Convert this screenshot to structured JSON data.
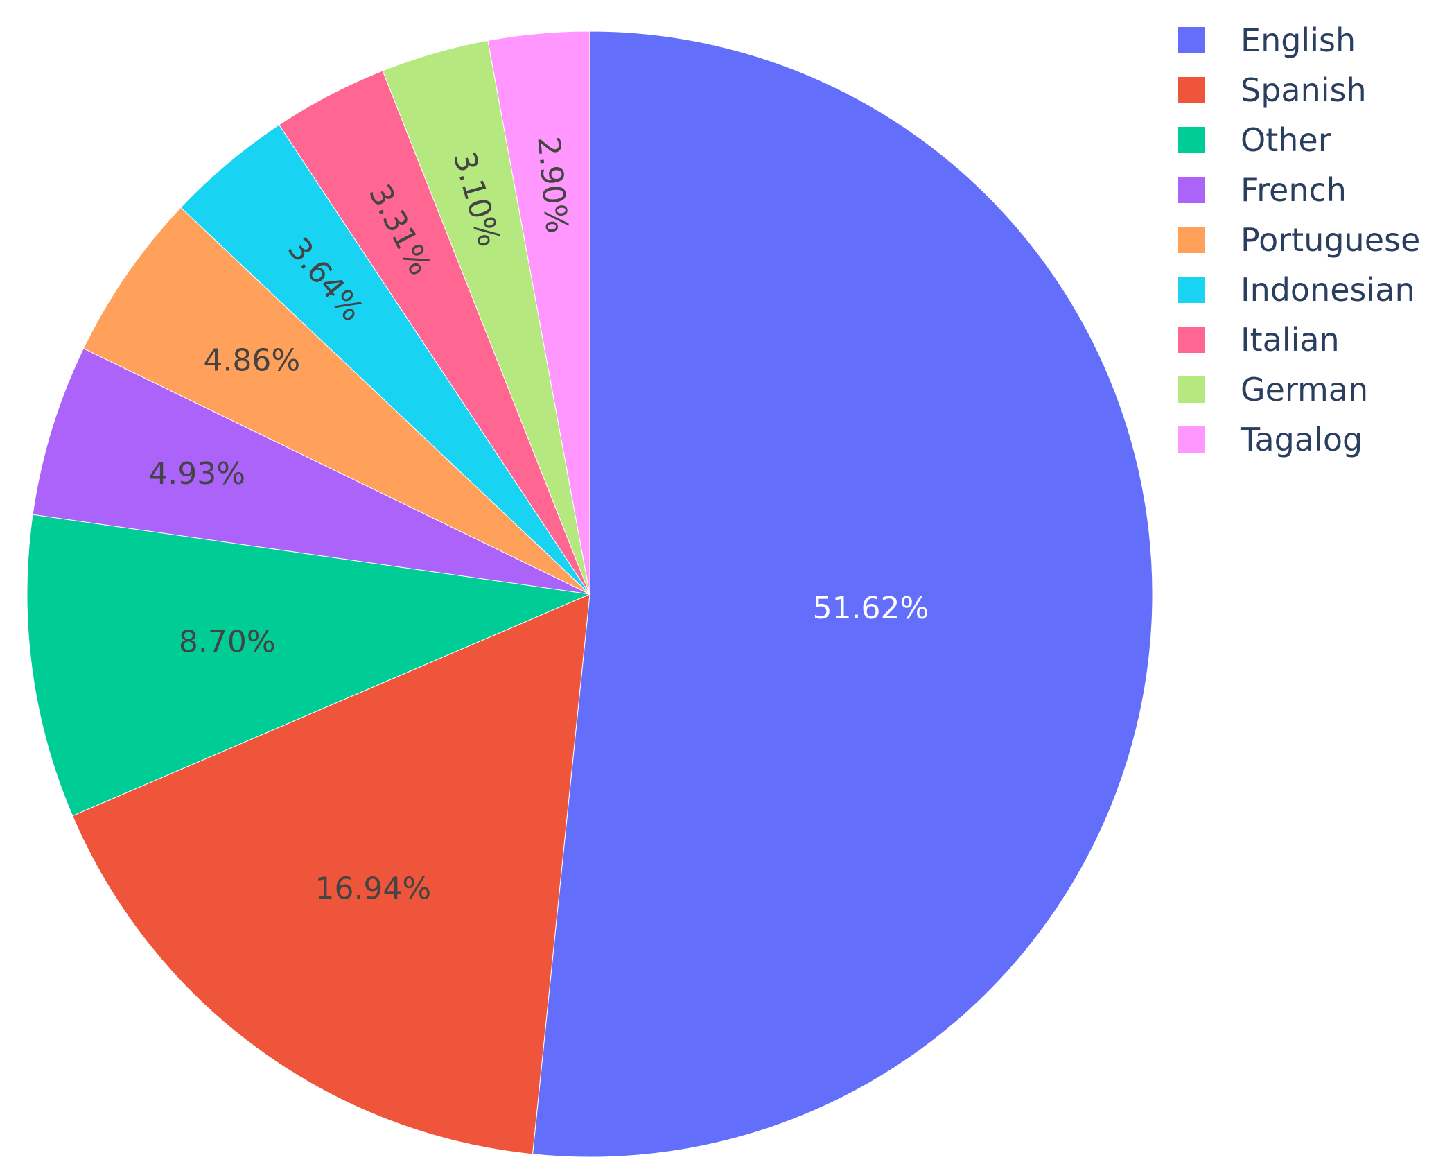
{
  "chart_data": {
    "type": "pie",
    "slices": [
      {
        "label": "English",
        "value": 51.62,
        "text": "51.62%",
        "color": "#636efa",
        "text_color": "#ffffff"
      },
      {
        "label": "Spanish",
        "value": 16.94,
        "text": "16.94%",
        "color": "#ef553b",
        "text_color": "#444444"
      },
      {
        "label": "Other",
        "value": 8.7,
        "text": "8.70%",
        "color": "#00cc96",
        "text_color": "#444444"
      },
      {
        "label": "French",
        "value": 4.93,
        "text": "4.93%",
        "color": "#ab63fa",
        "text_color": "#444444"
      },
      {
        "label": "Portuguese",
        "value": 4.86,
        "text": "4.86%",
        "color": "#ffa15a",
        "text_color": "#444444"
      },
      {
        "label": "Indonesian",
        "value": 3.64,
        "text": "3.64%",
        "color": "#19d3f3",
        "text_color": "#444444"
      },
      {
        "label": "Italian",
        "value": 3.31,
        "text": "3.31%",
        "color": "#ff6692",
        "text_color": "#444444"
      },
      {
        "label": "German",
        "value": 3.1,
        "text": "3.10%",
        "color": "#b6e880",
        "text_color": "#444444"
      },
      {
        "label": "Tagalog",
        "value": 2.9,
        "text": "2.90%",
        "color": "#ff97ff",
        "text_color": "#444444"
      }
    ],
    "start_angle": "top",
    "direction": "clockwise",
    "legend_position": "top-right",
    "title": ""
  }
}
